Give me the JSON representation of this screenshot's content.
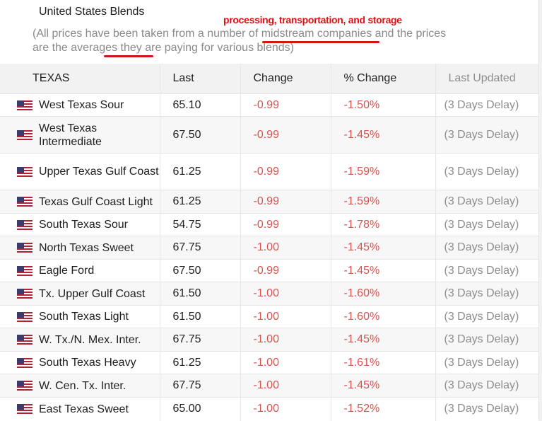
{
  "section_title": "United States Blends",
  "note_text": "(All prices have been taken from a number of midstream companies and the prices are the averages they are paying for various blends)",
  "annotation_text": "processing, transportation, and storage",
  "table": {
    "headers": [
      "TEXAS",
      "Last",
      "Change",
      "% Change",
      "Last Updated"
    ],
    "rows": [
      {
        "name": "West Texas Sour",
        "last": "65.10",
        "change": "-0.99",
        "pct": "-1.50%",
        "updated": "(3 Days Delay)"
      },
      {
        "name": "West Texas Intermediate",
        "last": "67.50",
        "change": "-0.99",
        "pct": "-1.45%",
        "updated": "(3 Days Delay)"
      },
      {
        "name": "Upper Texas Gulf Coast",
        "last": "61.25",
        "change": "-0.99",
        "pct": "-1.59%",
        "updated": "(3 Days Delay)"
      },
      {
        "name": "Texas Gulf Coast Light",
        "last": "61.25",
        "change": "-0.99",
        "pct": "-1.59%",
        "updated": "(3 Days Delay)"
      },
      {
        "name": "South Texas Sour",
        "last": "54.75",
        "change": "-0.99",
        "pct": "-1.78%",
        "updated": "(3 Days Delay)"
      },
      {
        "name": "North Texas Sweet",
        "last": "67.75",
        "change": "-1.00",
        "pct": "-1.45%",
        "updated": "(3 Days Delay)"
      },
      {
        "name": "Eagle Ford",
        "last": "67.50",
        "change": "-0.99",
        "pct": "-1.45%",
        "updated": "(3 Days Delay)"
      },
      {
        "name": "Tx. Upper Gulf Coast",
        "last": "61.50",
        "change": "-1.00",
        "pct": "-1.60%",
        "updated": "(3 Days Delay)"
      },
      {
        "name": "South Texas Light",
        "last": "61.50",
        "change": "-1.00",
        "pct": "-1.60%",
        "updated": "(3 Days Delay)"
      },
      {
        "name": "W. Tx./N. Mex. Inter.",
        "last": "67.75",
        "change": "-1.00",
        "pct": "-1.45%",
        "updated": "(3 Days Delay)"
      },
      {
        "name": "South Texas Heavy",
        "last": "61.25",
        "change": "-1.00",
        "pct": "-1.61%",
        "updated": "(3 Days Delay)"
      },
      {
        "name": "W. Cen. Tx. Inter.",
        "last": "67.75",
        "change": "-1.00",
        "pct": "-1.45%",
        "updated": "(3 Days Delay)"
      },
      {
        "name": "East Texas Sweet",
        "last": "65.00",
        "change": "-1.00",
        "pct": "-1.52%",
        "updated": "(3 Days Delay)"
      }
    ]
  },
  "colors": {
    "negative": "#d9534f",
    "muted": "#8d8d8d",
    "annotation": "#e01010"
  },
  "icons": {
    "flag": "us-flag-icon"
  }
}
